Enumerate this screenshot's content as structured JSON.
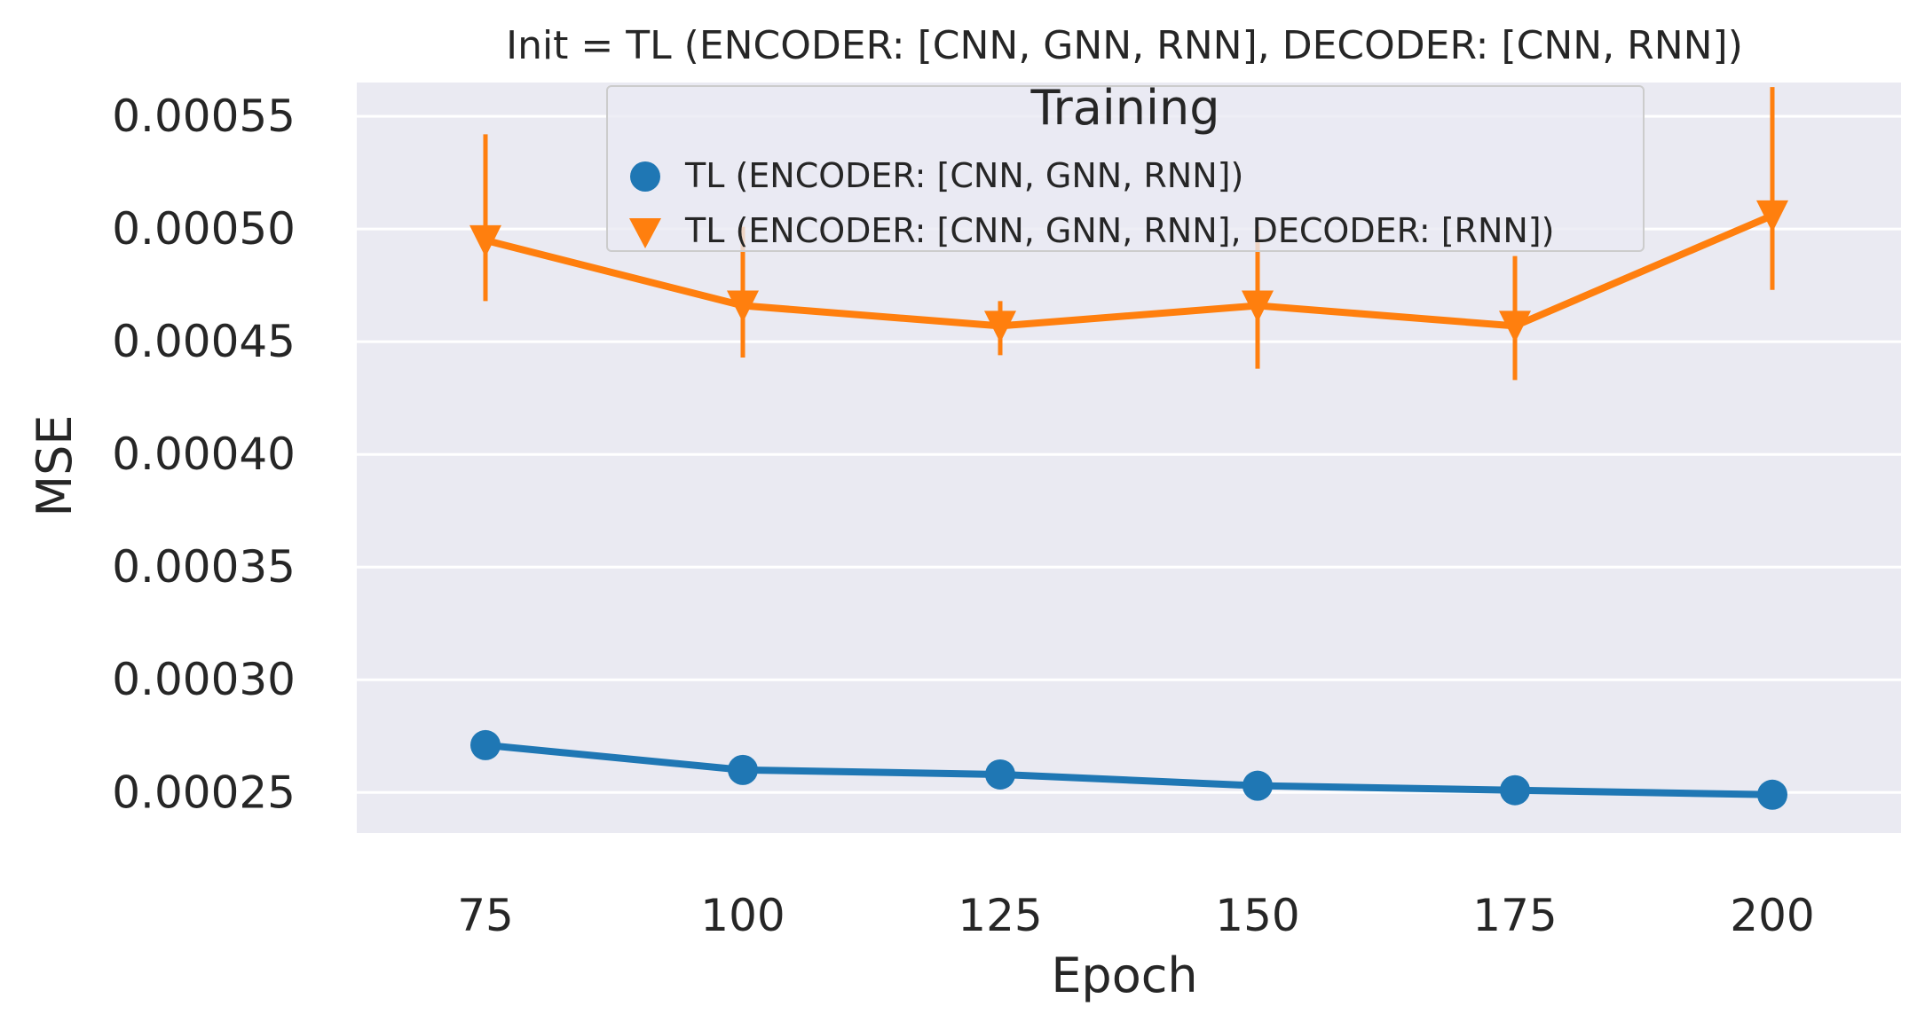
{
  "chart_data": {
    "type": "line",
    "title": "Init = TL (ENCODER: [CNN, GNN, RNN], DECODER: [CNN, RNN])",
    "xlabel": "Epoch",
    "ylabel": "MSE",
    "x": [
      75,
      100,
      125,
      150,
      175,
      200
    ],
    "x_tick_labels": [
      "75",
      "100",
      "125",
      "150",
      "175",
      "200"
    ],
    "y_ticks": [
      0.00025,
      0.0003,
      0.00035,
      0.0004,
      0.00045,
      0.0005,
      0.00055
    ],
    "y_tick_labels": [
      "0.00025",
      "0.00030",
      "0.00035",
      "0.00040",
      "0.00045",
      "0.00050",
      "0.00055"
    ],
    "xlim": [
      62.5,
      212.5
    ],
    "ylim": [
      0.000232,
      0.000565
    ],
    "grid": true,
    "legend": {
      "title": "Training",
      "placement": "top-center"
    },
    "series": [
      {
        "name": "TL (ENCODER: [CNN, GNN, RNN])",
        "marker": "circle",
        "color": "#1f77b4",
        "values": [
          0.000271,
          0.00026,
          0.000258,
          0.000253,
          0.000251,
          0.000249
        ],
        "err_low": [
          null,
          null,
          null,
          null,
          null,
          null
        ],
        "err_high": [
          null,
          null,
          null,
          null,
          null,
          null
        ]
      },
      {
        "name": "TL (ENCODER: [CNN, GNN, RNN], DECODER: [RNN])",
        "marker": "triangle-down",
        "color": "#ff7f0e",
        "values": [
          0.000495,
          0.000466,
          0.000457,
          0.000466,
          0.000457,
          0.000506
        ],
        "err_low": [
          0.000468,
          0.000443,
          0.000444,
          0.000438,
          0.000433,
          0.000473
        ],
        "err_high": [
          0.000542,
          0.000501,
          0.000468,
          0.000501,
          0.000488,
          0.000563
        ]
      }
    ]
  }
}
